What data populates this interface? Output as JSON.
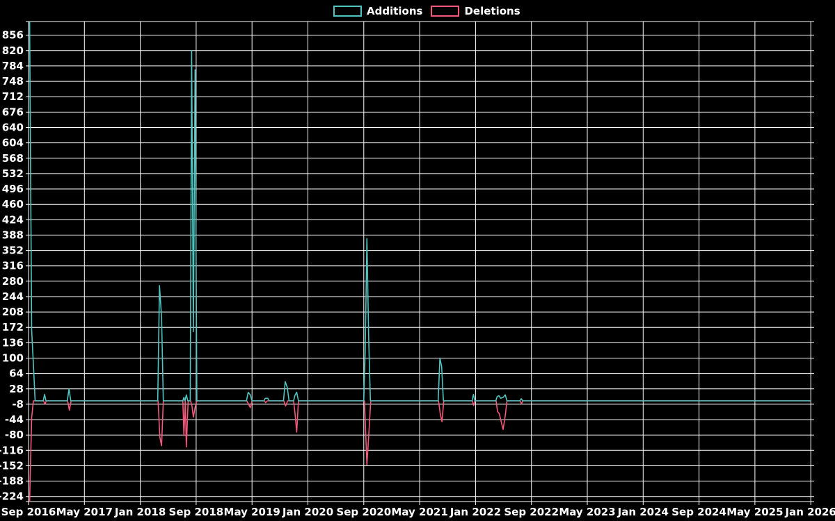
{
  "legend": {
    "items": [
      {
        "label": "Additions",
        "color": "#4EC5C0"
      },
      {
        "label": "Deletions",
        "color": "#F4597C"
      }
    ]
  },
  "colors": {
    "background": "#000000",
    "grid": "#FFFFFF",
    "text": "#FFFFFF",
    "additions": "#4EC5C0",
    "deletions": "#F4597C"
  },
  "chart_data": {
    "type": "line",
    "title": "",
    "grid": true,
    "legend_position": "top-center",
    "y_axis": {
      "min": -224,
      "max": 856,
      "step": 36,
      "tick_values": [
        856,
        820,
        784,
        748,
        712,
        676,
        640,
        604,
        568,
        532,
        496,
        460,
        424,
        388,
        352,
        316,
        280,
        244,
        208,
        172,
        136,
        100,
        64,
        28,
        -8,
        -44,
        -80,
        -116,
        -152,
        -188,
        -224
      ]
    },
    "x_axis": {
      "tick_labels": [
        "Sep 2016",
        "May 2017",
        "Jan 2018",
        "Sep 2018",
        "May 2019",
        "Jan 2020",
        "Sep 2020",
        "May 2021",
        "Jan 2022",
        "Sep 2022",
        "May 2023",
        "Jan 2024",
        "Sep 2024",
        "May 2025",
        "Jan 2026"
      ],
      "tick_month_offsets": [
        0,
        8,
        16,
        24,
        32,
        40,
        48,
        56,
        64,
        72,
        80,
        88,
        96,
        104,
        112
      ]
    },
    "series": [
      {
        "name": "Additions",
        "color": "#4EC5C0",
        "points": [
          [
            0.15,
            905
          ],
          [
            0.45,
            165
          ],
          [
            0.7,
            85
          ],
          [
            0.95,
            0
          ],
          [
            2.1,
            0
          ],
          [
            2.3,
            15
          ],
          [
            2.5,
            0
          ],
          [
            5.55,
            0
          ],
          [
            5.8,
            28
          ],
          [
            6.05,
            0
          ],
          [
            18.5,
            0
          ],
          [
            18.75,
            270
          ],
          [
            19.05,
            196
          ],
          [
            19.3,
            0
          ],
          [
            22.1,
            0
          ],
          [
            22.25,
            8
          ],
          [
            22.4,
            0
          ],
          [
            22.6,
            14
          ],
          [
            22.8,
            0
          ],
          [
            23.15,
            0
          ],
          [
            23.35,
            820
          ],
          [
            23.6,
            162
          ],
          [
            23.85,
            775
          ],
          [
            24.1,
            0
          ],
          [
            31.2,
            0
          ],
          [
            31.45,
            20
          ],
          [
            31.75,
            14
          ],
          [
            32.0,
            0
          ],
          [
            33.7,
            0
          ],
          [
            33.9,
            6
          ],
          [
            34.25,
            6
          ],
          [
            34.45,
            0
          ],
          [
            36.5,
            0
          ],
          [
            36.75,
            45
          ],
          [
            37.05,
            31
          ],
          [
            37.3,
            0
          ],
          [
            37.95,
            0
          ],
          [
            38.15,
            13
          ],
          [
            38.4,
            20
          ],
          [
            38.65,
            0
          ],
          [
            48.0,
            0
          ],
          [
            48.2,
            113
          ],
          [
            48.45,
            380
          ],
          [
            48.7,
            150
          ],
          [
            48.95,
            0
          ],
          [
            58.65,
            0
          ],
          [
            58.9,
            100
          ],
          [
            59.15,
            80
          ],
          [
            59.4,
            0
          ],
          [
            63.5,
            0
          ],
          [
            63.7,
            15
          ],
          [
            63.9,
            0
          ],
          [
            66.9,
            0
          ],
          [
            67.1,
            10
          ],
          [
            67.35,
            12
          ],
          [
            67.6,
            6
          ],
          [
            67.95,
            8
          ],
          [
            68.25,
            14
          ],
          [
            68.5,
            0
          ],
          [
            70.35,
            0
          ],
          [
            70.55,
            5
          ],
          [
            70.75,
            0
          ],
          [
            112,
            0
          ]
        ]
      },
      {
        "name": "Deletions",
        "color": "#F4597C",
        "points": [
          [
            0.15,
            -238
          ],
          [
            0.45,
            -40
          ],
          [
            0.7,
            0
          ],
          [
            2.15,
            0
          ],
          [
            2.35,
            -8
          ],
          [
            2.55,
            0
          ],
          [
            5.6,
            0
          ],
          [
            5.85,
            -22
          ],
          [
            6.1,
            0
          ],
          [
            18.55,
            0
          ],
          [
            18.8,
            -85
          ],
          [
            19.05,
            -105
          ],
          [
            19.3,
            0
          ],
          [
            22.1,
            0
          ],
          [
            22.25,
            -81
          ],
          [
            22.45,
            0
          ],
          [
            22.6,
            -108
          ],
          [
            22.85,
            0
          ],
          [
            23.2,
            0
          ],
          [
            23.4,
            -12
          ],
          [
            23.6,
            -38
          ],
          [
            23.85,
            -15
          ],
          [
            24.1,
            0
          ],
          [
            31.25,
            0
          ],
          [
            31.5,
            -8
          ],
          [
            31.75,
            -16
          ],
          [
            32.0,
            0
          ],
          [
            33.75,
            0
          ],
          [
            33.95,
            -4
          ],
          [
            34.2,
            0
          ],
          [
            36.55,
            0
          ],
          [
            36.8,
            -12
          ],
          [
            37.1,
            0
          ],
          [
            37.95,
            0
          ],
          [
            38.15,
            -28
          ],
          [
            38.4,
            -73
          ],
          [
            38.65,
            0
          ],
          [
            48.1,
            0
          ],
          [
            48.45,
            -150
          ],
          [
            48.75,
            -70
          ],
          [
            49.0,
            0
          ],
          [
            58.7,
            0
          ],
          [
            58.95,
            -30
          ],
          [
            59.2,
            -49
          ],
          [
            59.45,
            0
          ],
          [
            63.55,
            0
          ],
          [
            63.72,
            -11
          ],
          [
            63.9,
            0
          ],
          [
            66.95,
            0
          ],
          [
            67.15,
            -25
          ],
          [
            67.4,
            -30
          ],
          [
            67.95,
            -67
          ],
          [
            68.25,
            -35
          ],
          [
            68.5,
            0
          ],
          [
            70.4,
            0
          ],
          [
            70.58,
            -7
          ],
          [
            70.75,
            0
          ],
          [
            112,
            0
          ]
        ]
      }
    ]
  }
}
